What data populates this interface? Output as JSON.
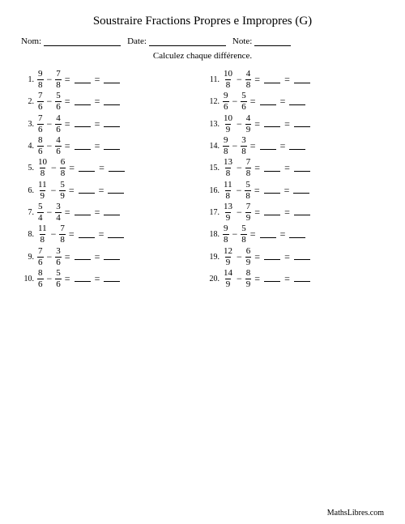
{
  "title": "Soustraire Fractions Propres e Impropres (G)",
  "header": {
    "name_label": "Nom:",
    "date_label": "Date:",
    "note_label": "Note:",
    "name_line_width": 95,
    "date_line_width": 95,
    "note_line_width": 45
  },
  "instructions": "Calculez chaque différence.",
  "operator": "−",
  "equals": "=",
  "colors": {
    "text": "#000000",
    "bg": "#ffffff"
  },
  "left": [
    {
      "n": "1.",
      "a_num": "9",
      "a_den": "8",
      "b_num": "7",
      "b_den": "8"
    },
    {
      "n": "2.",
      "a_num": "7",
      "a_den": "6",
      "b_num": "5",
      "b_den": "6"
    },
    {
      "n": "3.",
      "a_num": "7",
      "a_den": "6",
      "b_num": "4",
      "b_den": "6"
    },
    {
      "n": "4.",
      "a_num": "8",
      "a_den": "6",
      "b_num": "4",
      "b_den": "6"
    },
    {
      "n": "5.",
      "a_num": "10",
      "a_den": "8",
      "b_num": "6",
      "b_den": "8"
    },
    {
      "n": "6.",
      "a_num": "11",
      "a_den": "9",
      "b_num": "5",
      "b_den": "9"
    },
    {
      "n": "7.",
      "a_num": "5",
      "a_den": "4",
      "b_num": "3",
      "b_den": "4"
    },
    {
      "n": "8.",
      "a_num": "11",
      "a_den": "8",
      "b_num": "7",
      "b_den": "8"
    },
    {
      "n": "9.",
      "a_num": "7",
      "a_den": "6",
      "b_num": "3",
      "b_den": "6"
    },
    {
      "n": "10.",
      "a_num": "8",
      "a_den": "6",
      "b_num": "5",
      "b_den": "6"
    }
  ],
  "right": [
    {
      "n": "11.",
      "a_num": "10",
      "a_den": "8",
      "b_num": "4",
      "b_den": "8"
    },
    {
      "n": "12.",
      "a_num": "9",
      "a_den": "6",
      "b_num": "5",
      "b_den": "6"
    },
    {
      "n": "13.",
      "a_num": "10",
      "a_den": "9",
      "b_num": "4",
      "b_den": "9"
    },
    {
      "n": "14.",
      "a_num": "9",
      "a_den": "8",
      "b_num": "3",
      "b_den": "8"
    },
    {
      "n": "15.",
      "a_num": "13",
      "a_den": "8",
      "b_num": "7",
      "b_den": "8"
    },
    {
      "n": "16.",
      "a_num": "11",
      "a_den": "8",
      "b_num": "5",
      "b_den": "8"
    },
    {
      "n": "17.",
      "a_num": "13",
      "a_den": "9",
      "b_num": "7",
      "b_den": "9"
    },
    {
      "n": "18.",
      "a_num": "9",
      "a_den": "8",
      "b_num": "5",
      "b_den": "8"
    },
    {
      "n": "19.",
      "a_num": "12",
      "a_den": "9",
      "b_num": "6",
      "b_den": "9"
    },
    {
      "n": "20.",
      "a_num": "14",
      "a_den": "9",
      "b_num": "8",
      "b_den": "9"
    }
  ],
  "footer": "MathsLibres.com"
}
